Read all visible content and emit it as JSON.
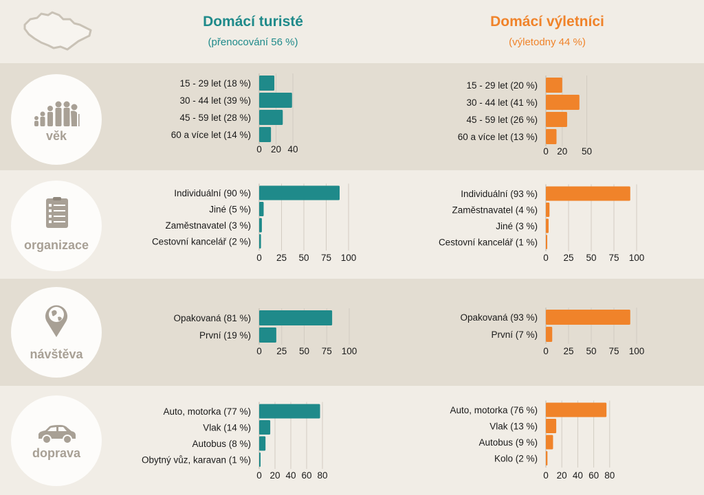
{
  "colors": {
    "turiste": "#1f8a8a",
    "vyletnici": "#f0832a",
    "grid": "#d2ccc2",
    "band_dark": "#e3ddd2",
    "band_light": "#f1ede6"
  },
  "header": {
    "map_icon": "czech-republic-map-icon",
    "left_title": "Domácí turisté",
    "left_sub": "(přenocování 56 %)",
    "right_title": "Domácí výletníci",
    "right_sub": "(výletodny 44 %)"
  },
  "sections": [
    {
      "label": "věk",
      "icon": "age-progression-icon"
    },
    {
      "label": "organizace",
      "icon": "checklist-icon"
    },
    {
      "label": "návštěva",
      "icon": "globe-pin-icon"
    },
    {
      "label": "doprava",
      "icon": "car-icon"
    }
  ],
  "chart_data": [
    {
      "type": "bar",
      "orientation": "horizontal",
      "section": "věk",
      "group": "Domácí turisté",
      "categories": [
        "15 - 29 let (18 %)",
        "30 - 44 let (39 %)",
        "45 - 59 let  (28 %)",
        "60 a více let (14 %)"
      ],
      "values": [
        18,
        39,
        28,
        14
      ],
      "xticks": [
        0,
        20,
        40
      ],
      "xlim": [
        0,
        50
      ]
    },
    {
      "type": "bar",
      "orientation": "horizontal",
      "section": "věk",
      "group": "Domácí výletníci",
      "categories": [
        "15 - 29 let (20 %)",
        "30 - 44 let (41 %)",
        "45 - 59 let (26 %)",
        "60 a více let (13 %)"
      ],
      "values": [
        20,
        41,
        26,
        13
      ],
      "xticks": [
        0,
        20,
        50
      ],
      "xlim": [
        0,
        50
      ]
    },
    {
      "type": "bar",
      "orientation": "horizontal",
      "section": "organizace",
      "group": "Domácí turisté",
      "categories": [
        "Individuální (90 %)",
        "Jiné (5 %)",
        "Zaměstnavatel (3 %)",
        "Cestovní kancelář (2 %)"
      ],
      "values": [
        90,
        5,
        3,
        2
      ],
      "xticks": [
        0,
        25,
        50,
        75,
        100
      ],
      "xlim": [
        0,
        100
      ]
    },
    {
      "type": "bar",
      "orientation": "horizontal",
      "section": "organizace",
      "group": "Domácí výletníci",
      "categories": [
        "Individuální (93 %)",
        "Zaměstnavatel (4 %)",
        "Jiné (3 %)",
        "Cestovní kancelář (1 %)"
      ],
      "values": [
        93,
        4,
        3,
        1
      ],
      "xticks": [
        0,
        25,
        50,
        75,
        100
      ],
      "xlim": [
        0,
        100
      ]
    },
    {
      "type": "bar",
      "orientation": "horizontal",
      "section": "návštěva",
      "group": "Domácí turisté",
      "categories": [
        "Opakovaná (81 %)",
        "První (19 %)"
      ],
      "values": [
        81,
        19
      ],
      "xticks": [
        0,
        25,
        50,
        75,
        100
      ],
      "xlim": [
        0,
        100
      ]
    },
    {
      "type": "bar",
      "orientation": "horizontal",
      "section": "návštěva",
      "group": "Domácí výletníci",
      "categories": [
        "Opakovaná (93 %)",
        "První (7 %)"
      ],
      "values": [
        93,
        7
      ],
      "xticks": [
        0,
        25,
        50,
        75,
        100
      ],
      "xlim": [
        0,
        100
      ]
    },
    {
      "type": "bar",
      "orientation": "horizontal",
      "section": "doprava",
      "group": "Domácí turisté",
      "categories": [
        "Auto, motorka (77 %)",
        "Vlak (14 %)",
        "Autobus (8 %)",
        "Obytný vůz, karavan (1 %)"
      ],
      "values": [
        77,
        14,
        8,
        1
      ],
      "xticks": [
        0,
        20,
        40,
        60,
        80
      ],
      "xlim": [
        0,
        80
      ]
    },
    {
      "type": "bar",
      "orientation": "horizontal",
      "section": "doprava",
      "group": "Domácí výletníci",
      "categories": [
        "Auto, motorka (76 %)",
        "Vlak (13 %)",
        "Autobus (9 %)",
        "Kolo (2 %)"
      ],
      "values": [
        76,
        13,
        9,
        2
      ],
      "xticks": [
        0,
        20,
        40,
        60,
        80
      ],
      "xlim": [
        0,
        80
      ]
    }
  ]
}
